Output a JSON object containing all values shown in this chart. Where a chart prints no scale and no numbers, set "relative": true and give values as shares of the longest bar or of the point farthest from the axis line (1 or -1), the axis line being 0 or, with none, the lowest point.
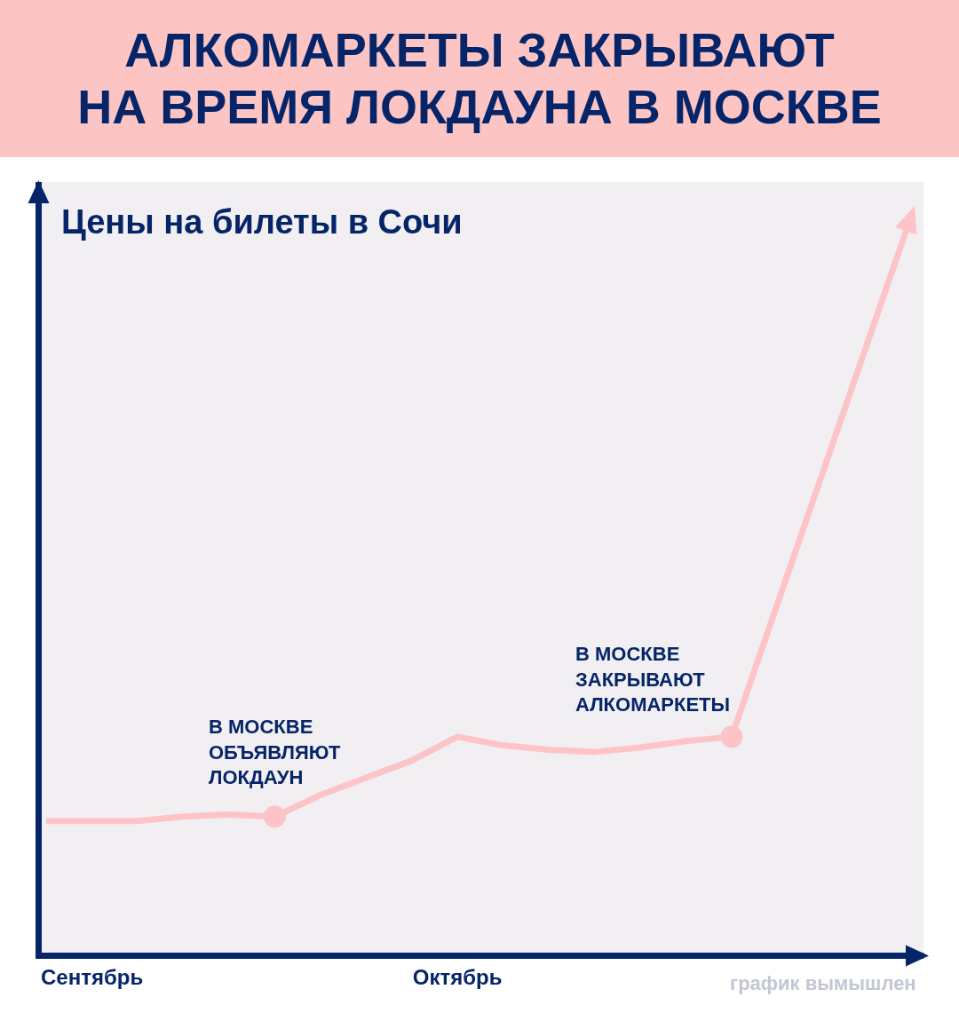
{
  "chart_data": {
    "type": "line",
    "title": "АЛКОМАРКЕТЫ ЗАКРЫВАЮТ\nНА ВРЕМЯ ЛОКДАУНА В МОСКВЕ",
    "relative": true,
    "categories": [
      null,
      "Сентябрь",
      null,
      null,
      null,
      null,
      null,
      null,
      null,
      "Октябрь",
      null,
      null,
      null,
      null,
      null,
      null,
      null,
      null,
      null,
      null
    ],
    "tick_labels": "x",
    "line_style": "solid",
    "series": [
      {
        "color": "#fcc4c6",
        "values": [
          0.61,
          0.61,
          0.61,
          0.63,
          0.64,
          0.63,
          0.73,
          0.81,
          0.89,
          1,
          0.96,
          0.94,
          0.93,
          0.95,
          0.98,
          1,
          null,
          null,
          null,
          null
        ]
      },
      {
        "type": "scatter",
        "color": "#fcc4c6",
        "marker": "circle",
        "values": [
          null,
          null,
          null,
          null,
          null,
          0.63,
          null,
          null,
          null,
          null,
          null,
          null,
          null,
          null,
          null,
          1,
          null,
          null,
          null,
          null
        ]
      }
    ],
    "annotations": [
      "Цены на билеты в Сочи",
      {
        "text": "В МОСКВЕ\nОБЪЯВЛЯЮТ\nЛОКДАУН",
        "y": 0.63
      },
      "В МОСКВЕ\nЗАКРЫВАЮТ\nАЛКОМАРКЕТЫ",
      "график вымышлен"
    ]
  }
}
